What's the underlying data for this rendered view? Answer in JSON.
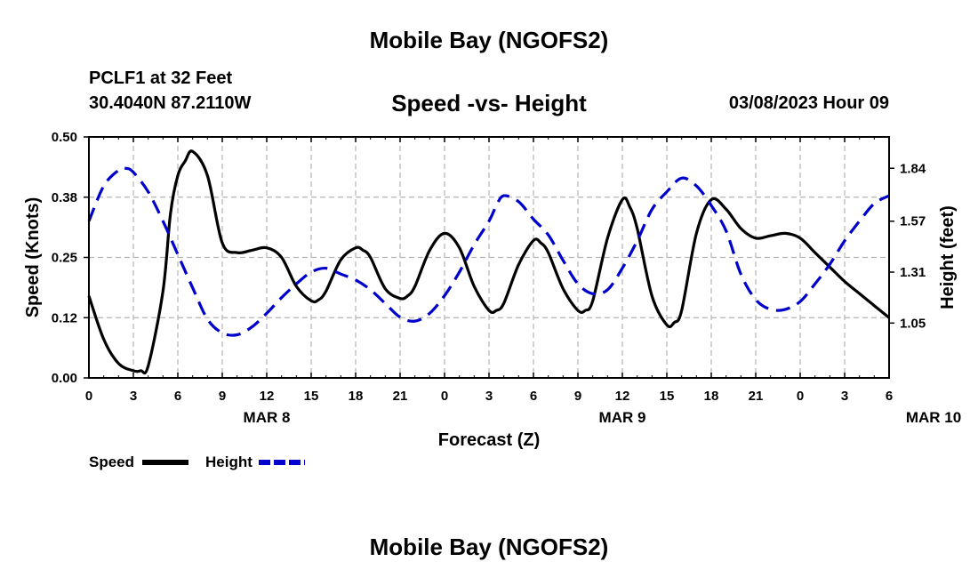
{
  "header": {
    "title": "Mobile Bay (NGOFS2)",
    "station": "PCLF1 at 32 Feet",
    "coords": "30.4040N  87.2110W",
    "chart_title": "Speed -vs- Height",
    "datetime": "03/08/2023 Hour 09"
  },
  "footer": {
    "title": "Mobile Bay (NGOFS2)"
  },
  "colors": {
    "speed": "#000000",
    "height": "#0000cc",
    "grid": "#b4b4b4"
  },
  "chart_data": {
    "type": "line",
    "title": "Speed -vs- Height",
    "xlabel": "Forecast (Z)",
    "ylabel": "Speed (Knots)",
    "y2label": "Height (feet)",
    "x_ticks": [
      "0",
      "3",
      "6",
      "9",
      "12",
      "15",
      "18",
      "21",
      "0",
      "3",
      "6",
      "9",
      "12",
      "15",
      "18",
      "21",
      "0",
      "3",
      "6"
    ],
    "date_labels": [
      {
        "label": "MAR 8",
        "hour": 12
      },
      {
        "label": "MAR 9",
        "hour": 36
      },
      {
        "label": "MAR 10",
        "hour": 57
      }
    ],
    "xlim": [
      0,
      54
    ],
    "ylim": [
      0,
      0.5
    ],
    "y_ticks": [
      "0.00",
      "0.12",
      "0.25",
      "0.38",
      "0.50"
    ],
    "y2lim": [
      0.77,
      2.0
    ],
    "y2_ticks": [
      "1.05",
      "1.31",
      "1.57",
      "1.84"
    ],
    "grid": true,
    "legend_position": "bottom-left",
    "series": [
      {
        "name": "Speed",
        "axis": "left",
        "style": "solid",
        "x": [
          0,
          1,
          2,
          3,
          3.5,
          4,
          5,
          5.5,
          6,
          6.5,
          7,
          8,
          9,
          10,
          11,
          12,
          13,
          14,
          15,
          15.5,
          16,
          17,
          18,
          18.5,
          19,
          20,
          21,
          21.5,
          22,
          23,
          24,
          25,
          26,
          27,
          27.5,
          28,
          29,
          30,
          30.5,
          31,
          32,
          33,
          33.5,
          34,
          35,
          36,
          36.5,
          37,
          38,
          39,
          39.5,
          40,
          41,
          42,
          43,
          44,
          45,
          46,
          47,
          48,
          49,
          50,
          51,
          52,
          53,
          54
        ],
        "y": [
          0.17,
          0.08,
          0.03,
          0.015,
          0.015,
          0.025,
          0.18,
          0.34,
          0.42,
          0.45,
          0.47,
          0.42,
          0.28,
          0.26,
          0.265,
          0.27,
          0.25,
          0.19,
          0.16,
          0.162,
          0.18,
          0.245,
          0.27,
          0.265,
          0.25,
          0.185,
          0.165,
          0.17,
          0.19,
          0.265,
          0.3,
          0.27,
          0.19,
          0.14,
          0.14,
          0.155,
          0.235,
          0.285,
          0.28,
          0.26,
          0.185,
          0.14,
          0.14,
          0.16,
          0.29,
          0.37,
          0.355,
          0.31,
          0.17,
          0.11,
          0.115,
          0.14,
          0.3,
          0.37,
          0.35,
          0.31,
          0.29,
          0.295,
          0.3,
          0.29,
          0.26,
          0.23,
          0.2,
          0.175,
          0.15,
          0.125
        ]
      },
      {
        "name": "Height",
        "axis": "right",
        "style": "dashed",
        "x": [
          0,
          1,
          2,
          2.5,
          3,
          4,
          5,
          6,
          7,
          8,
          9,
          10,
          11,
          12,
          13,
          14,
          15,
          16,
          17,
          18,
          19,
          20,
          21,
          22,
          23,
          24,
          25,
          26,
          27,
          27.5,
          28,
          29,
          30,
          31,
          32,
          33,
          34,
          35,
          36,
          37,
          38,
          39,
          40,
          41,
          42,
          43,
          44,
          45,
          46,
          47,
          48,
          49,
          50,
          51,
          52,
          53,
          54
        ],
        "y": [
          1.57,
          1.75,
          1.83,
          1.84,
          1.82,
          1.72,
          1.57,
          1.4,
          1.23,
          1.07,
          1.0,
          0.99,
          1.03,
          1.1,
          1.18,
          1.25,
          1.31,
          1.33,
          1.3,
          1.27,
          1.22,
          1.15,
          1.08,
          1.06,
          1.1,
          1.19,
          1.31,
          1.45,
          1.57,
          1.65,
          1.7,
          1.67,
          1.58,
          1.5,
          1.37,
          1.25,
          1.2,
          1.22,
          1.33,
          1.47,
          1.63,
          1.72,
          1.79,
          1.75,
          1.65,
          1.52,
          1.3,
          1.17,
          1.12,
          1.12,
          1.16,
          1.25,
          1.35,
          1.47,
          1.57,
          1.66,
          1.7
        ]
      }
    ]
  }
}
